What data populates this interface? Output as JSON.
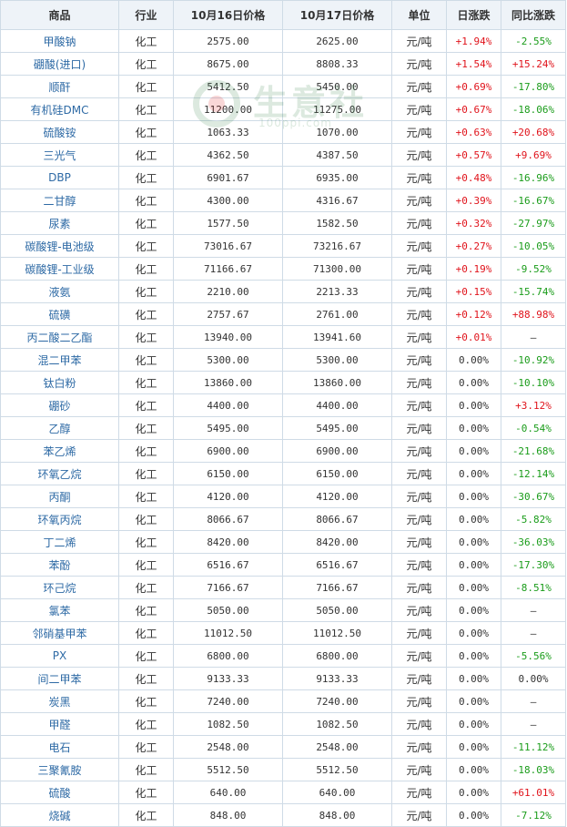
{
  "header": {
    "name": "商品",
    "industry": "行业",
    "price_prev": "10月16日价格",
    "price_curr": "10月17日价格",
    "unit": "单位",
    "daily_change": "日涨跌",
    "yoy_change": "同比涨跌"
  },
  "watermark": {
    "text": "生意社",
    "url": "100ppi.com"
  },
  "colors": {
    "up": "#e0131b",
    "down": "#1a9c1a",
    "name": "#2e6aa5",
    "header_bg": "#eef3f8",
    "border": "#cfdbe6"
  },
  "rows": [
    {
      "name": "甲酸钠",
      "industry": "化工",
      "prev": "2575.00",
      "curr": "2625.00",
      "unit": "元/吨",
      "daily": "+1.94%",
      "yoy": "-2.55%"
    },
    {
      "name": "硼酸(进口)",
      "industry": "化工",
      "prev": "8675.00",
      "curr": "8808.33",
      "unit": "元/吨",
      "daily": "+1.54%",
      "yoy": "+15.24%"
    },
    {
      "name": "顺酐",
      "industry": "化工",
      "prev": "5412.50",
      "curr": "5450.00",
      "unit": "元/吨",
      "daily": "+0.69%",
      "yoy": "-17.80%"
    },
    {
      "name": "有机硅DMC",
      "industry": "化工",
      "prev": "11200.00",
      "curr": "11275.00",
      "unit": "元/吨",
      "daily": "+0.67%",
      "yoy": "-18.06%"
    },
    {
      "name": "硫酸铵",
      "industry": "化工",
      "prev": "1063.33",
      "curr": "1070.00",
      "unit": "元/吨",
      "daily": "+0.63%",
      "yoy": "+20.68%"
    },
    {
      "name": "三光气",
      "industry": "化工",
      "prev": "4362.50",
      "curr": "4387.50",
      "unit": "元/吨",
      "daily": "+0.57%",
      "yoy": "+9.69%"
    },
    {
      "name": "DBP",
      "industry": "化工",
      "prev": "6901.67",
      "curr": "6935.00",
      "unit": "元/吨",
      "daily": "+0.48%",
      "yoy": "-16.96%"
    },
    {
      "name": "二甘醇",
      "industry": "化工",
      "prev": "4300.00",
      "curr": "4316.67",
      "unit": "元/吨",
      "daily": "+0.39%",
      "yoy": "-16.67%"
    },
    {
      "name": "尿素",
      "industry": "化工",
      "prev": "1577.50",
      "curr": "1582.50",
      "unit": "元/吨",
      "daily": "+0.32%",
      "yoy": "-27.97%"
    },
    {
      "name": "碳酸锂-电池级",
      "industry": "化工",
      "prev": "73016.67",
      "curr": "73216.67",
      "unit": "元/吨",
      "daily": "+0.27%",
      "yoy": "-10.05%"
    },
    {
      "name": "碳酸锂-工业级",
      "industry": "化工",
      "prev": "71166.67",
      "curr": "71300.00",
      "unit": "元/吨",
      "daily": "+0.19%",
      "yoy": "-9.52%"
    },
    {
      "name": "液氨",
      "industry": "化工",
      "prev": "2210.00",
      "curr": "2213.33",
      "unit": "元/吨",
      "daily": "+0.15%",
      "yoy": "-15.74%"
    },
    {
      "name": "硫磺",
      "industry": "化工",
      "prev": "2757.67",
      "curr": "2761.00",
      "unit": "元/吨",
      "daily": "+0.12%",
      "yoy": "+88.98%"
    },
    {
      "name": "丙二酸二乙酯",
      "industry": "化工",
      "prev": "13940.00",
      "curr": "13941.60",
      "unit": "元/吨",
      "daily": "+0.01%",
      "yoy": "—"
    },
    {
      "name": "混二甲苯",
      "industry": "化工",
      "prev": "5300.00",
      "curr": "5300.00",
      "unit": "元/吨",
      "daily": "0.00%",
      "yoy": "-10.92%"
    },
    {
      "name": "钛白粉",
      "industry": "化工",
      "prev": "13860.00",
      "curr": "13860.00",
      "unit": "元/吨",
      "daily": "0.00%",
      "yoy": "-10.10%"
    },
    {
      "name": "硼砂",
      "industry": "化工",
      "prev": "4400.00",
      "curr": "4400.00",
      "unit": "元/吨",
      "daily": "0.00%",
      "yoy": "+3.12%"
    },
    {
      "name": "乙醇",
      "industry": "化工",
      "prev": "5495.00",
      "curr": "5495.00",
      "unit": "元/吨",
      "daily": "0.00%",
      "yoy": "-0.54%"
    },
    {
      "name": "苯乙烯",
      "industry": "化工",
      "prev": "6900.00",
      "curr": "6900.00",
      "unit": "元/吨",
      "daily": "0.00%",
      "yoy": "-21.68%"
    },
    {
      "name": "环氧乙烷",
      "industry": "化工",
      "prev": "6150.00",
      "curr": "6150.00",
      "unit": "元/吨",
      "daily": "0.00%",
      "yoy": "-12.14%"
    },
    {
      "name": "丙酮",
      "industry": "化工",
      "prev": "4120.00",
      "curr": "4120.00",
      "unit": "元/吨",
      "daily": "0.00%",
      "yoy": "-30.67%"
    },
    {
      "name": "环氧丙烷",
      "industry": "化工",
      "prev": "8066.67",
      "curr": "8066.67",
      "unit": "元/吨",
      "daily": "0.00%",
      "yoy": "-5.82%"
    },
    {
      "name": "丁二烯",
      "industry": "化工",
      "prev": "8420.00",
      "curr": "8420.00",
      "unit": "元/吨",
      "daily": "0.00%",
      "yoy": "-36.03%"
    },
    {
      "name": "苯酚",
      "industry": "化工",
      "prev": "6516.67",
      "curr": "6516.67",
      "unit": "元/吨",
      "daily": "0.00%",
      "yoy": "-17.30%"
    },
    {
      "name": "环己烷",
      "industry": "化工",
      "prev": "7166.67",
      "curr": "7166.67",
      "unit": "元/吨",
      "daily": "0.00%",
      "yoy": "-8.51%"
    },
    {
      "name": "氯苯",
      "industry": "化工",
      "prev": "5050.00",
      "curr": "5050.00",
      "unit": "元/吨",
      "daily": "0.00%",
      "yoy": "—"
    },
    {
      "name": "邻硝基甲苯",
      "industry": "化工",
      "prev": "11012.50",
      "curr": "11012.50",
      "unit": "元/吨",
      "daily": "0.00%",
      "yoy": "—"
    },
    {
      "name": "PX",
      "industry": "化工",
      "prev": "6800.00",
      "curr": "6800.00",
      "unit": "元/吨",
      "daily": "0.00%",
      "yoy": "-5.56%"
    },
    {
      "name": "间二甲苯",
      "industry": "化工",
      "prev": "9133.33",
      "curr": "9133.33",
      "unit": "元/吨",
      "daily": "0.00%",
      "yoy": "0.00%"
    },
    {
      "name": "炭黑",
      "industry": "化工",
      "prev": "7240.00",
      "curr": "7240.00",
      "unit": "元/吨",
      "daily": "0.00%",
      "yoy": "—"
    },
    {
      "name": "甲醛",
      "industry": "化工",
      "prev": "1082.50",
      "curr": "1082.50",
      "unit": "元/吨",
      "daily": "0.00%",
      "yoy": "—"
    },
    {
      "name": "电石",
      "industry": "化工",
      "prev": "2548.00",
      "curr": "2548.00",
      "unit": "元/吨",
      "daily": "0.00%",
      "yoy": "-11.12%"
    },
    {
      "name": "三聚氰胺",
      "industry": "化工",
      "prev": "5512.50",
      "curr": "5512.50",
      "unit": "元/吨",
      "daily": "0.00%",
      "yoy": "-18.03%"
    },
    {
      "name": "硫酸",
      "industry": "化工",
      "prev": "640.00",
      "curr": "640.00",
      "unit": "元/吨",
      "daily": "0.00%",
      "yoy": "+61.01%"
    },
    {
      "name": "烧碱",
      "industry": "化工",
      "prev": "848.00",
      "curr": "848.00",
      "unit": "元/吨",
      "daily": "0.00%",
      "yoy": "-7.12%"
    }
  ]
}
